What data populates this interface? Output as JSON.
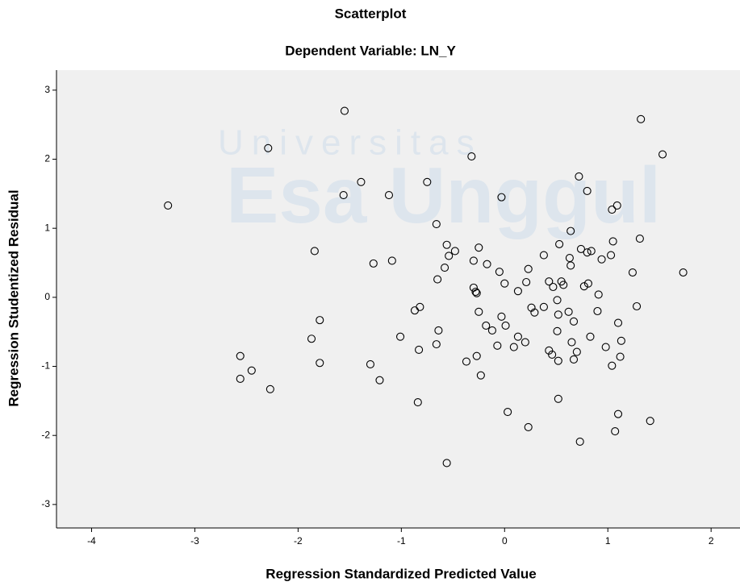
{
  "chart_data": {
    "type": "scatter",
    "title": "Scatterplot",
    "subtitle": "Dependent Variable: LN_Y",
    "x_label": "Regression Standardized Predicted Value",
    "y_label": "Regression Studentized Residual",
    "watermark": [
      "Universitas",
      "Esa Unggul"
    ],
    "xlim": [
      -4.34,
      2.28
    ],
    "ylim": [
      -3.34,
      3.29
    ],
    "xticks": [
      -4,
      -3,
      -2,
      -1,
      0,
      1,
      2
    ],
    "yticks": [
      -3,
      -2,
      -1,
      0,
      1,
      2,
      3
    ],
    "color": "#000000",
    "x": [
      -3.26,
      -1.55,
      -2.29,
      -1.39,
      -1.56,
      -1.12,
      -0.75,
      -0.32,
      -0.03,
      -0.66,
      -1.84,
      -1.27,
      -1.09,
      -0.56,
      -0.54,
      -0.48,
      -0.58,
      -0.65,
      -0.25,
      -0.3,
      -0.17,
      -0.3,
      -0.28,
      -0.27,
      -0.05,
      0.0,
      0.13,
      0.21,
      0.23,
      0.38,
      0.43,
      0.47,
      0.53,
      0.55,
      0.57,
      0.64,
      0.63,
      0.64,
      0.72,
      0.74,
      0.8,
      0.8,
      0.84,
      0.77,
      0.81,
      0.91,
      0.94,
      1.04,
      1.09,
      1.05,
      1.03,
      1.31,
      1.32,
      1.53,
      1.24,
      1.73,
      1.28,
      0.26,
      0.29,
      0.38,
      0.51,
      0.52,
      0.62,
      0.67,
      0.9,
      1.1,
      -0.25,
      -0.03,
      0.01,
      -0.18,
      -0.12,
      0.13,
      0.2,
      -0.07,
      0.09,
      -0.64,
      -0.66,
      -0.82,
      -0.87,
      -1.01,
      -0.83,
      -0.27,
      -0.37,
      -0.23,
      -1.87,
      -1.79,
      -1.79,
      -2.56,
      -2.56,
      -2.45,
      -2.27,
      -1.3,
      -1.21,
      -0.84,
      0.51,
      0.43,
      0.46,
      0.52,
      0.65,
      0.7,
      0.67,
      0.83,
      0.98,
      1.13,
      1.12,
      1.04,
      0.52,
      0.03,
      0.23,
      0.73,
      1.1,
      1.07,
      1.41,
      -0.56
    ],
    "values": [
      1.33,
      2.7,
      2.16,
      1.67,
      1.48,
      1.48,
      1.67,
      2.04,
      1.45,
      1.06,
      0.67,
      0.49,
      0.53,
      0.76,
      0.6,
      0.67,
      0.43,
      0.26,
      0.72,
      0.53,
      0.48,
      0.14,
      0.08,
      0.06,
      0.37,
      0.2,
      0.09,
      0.22,
      0.41,
      0.61,
      0.23,
      0.15,
      0.77,
      0.23,
      0.18,
      0.96,
      0.57,
      0.46,
      1.75,
      0.7,
      0.65,
      1.54,
      0.67,
      0.16,
      0.2,
      0.04,
      0.55,
      1.27,
      1.33,
      0.81,
      0.61,
      0.85,
      2.58,
      2.07,
      0.36,
      0.36,
      -0.13,
      -0.15,
      -0.22,
      -0.14,
      -0.04,
      -0.25,
      -0.21,
      -0.35,
      -0.2,
      -0.37,
      -0.21,
      -0.28,
      -0.41,
      -0.41,
      -0.48,
      -0.57,
      -0.65,
      -0.7,
      -0.72,
      -0.48,
      -0.68,
      -0.14,
      -0.19,
      -0.57,
      -0.76,
      -0.85,
      -0.93,
      -1.13,
      -0.6,
      -0.33,
      -0.95,
      -0.85,
      -1.18,
      -1.06,
      -1.33,
      -0.97,
      -1.2,
      -1.52,
      -0.49,
      -0.77,
      -0.83,
      -0.92,
      -0.65,
      -0.79,
      -0.9,
      -0.57,
      -0.72,
      -0.63,
      -0.86,
      -0.99,
      -1.47,
      -1.66,
      -1.88,
      -2.09,
      -1.69,
      -1.94,
      -1.79,
      -2.4
    ]
  }
}
